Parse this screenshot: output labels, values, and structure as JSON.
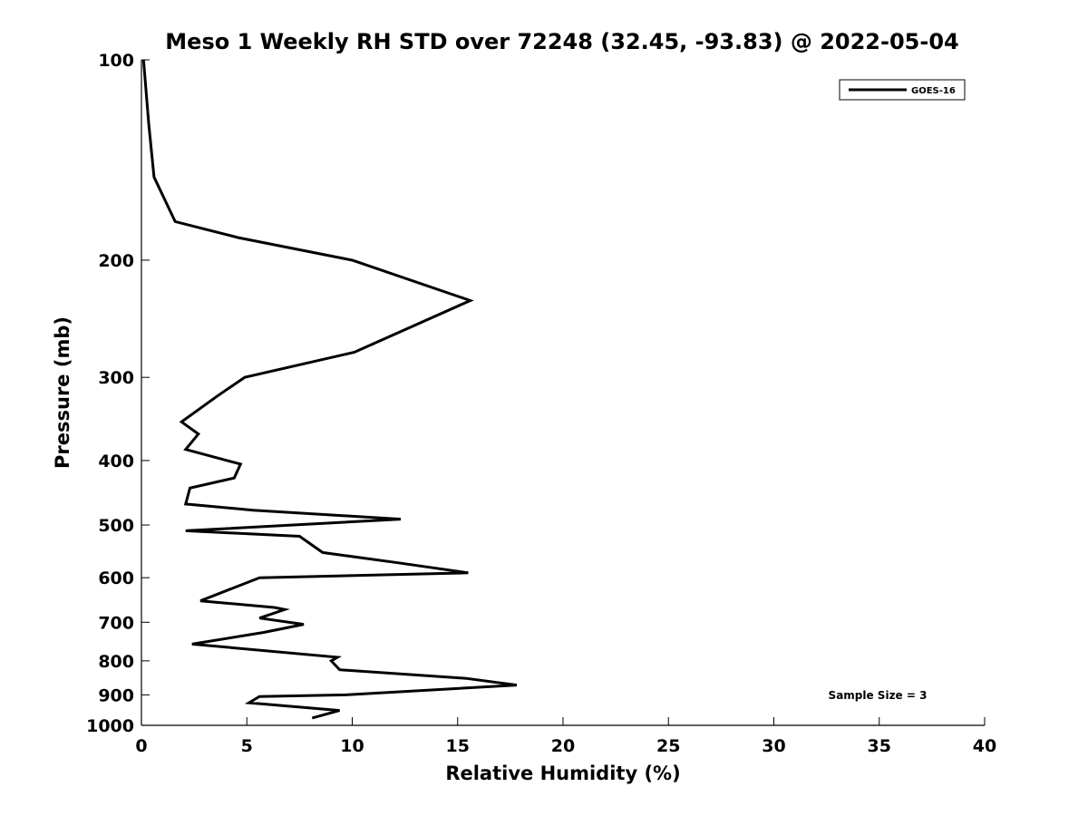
{
  "chart_data": {
    "type": "line",
    "title": "Meso 1 Weekly RH STD over 72248 (32.45, -93.83) @ 2022-05-04",
    "xlabel": "Relative Humidity (%)",
    "ylabel": "Pressure (mb)",
    "xlim": [
      0,
      40
    ],
    "ylim": [
      100,
      1000
    ],
    "y_scale": "log",
    "y_reversed": true,
    "x_ticks": [
      0,
      5,
      10,
      15,
      20,
      25,
      30,
      35,
      40
    ],
    "y_ticks": [
      100,
      200,
      300,
      400,
      500,
      600,
      700,
      800,
      900,
      1000
    ],
    "grid": false,
    "legend_position": "top-right",
    "annotation": "Sample Size = 3",
    "series": [
      {
        "name": "GOES-16",
        "color": "#000000",
        "x": [
          0.1,
          0.35,
          0.6,
          1.6,
          4.6,
          10.0,
          15.6,
          10.1,
          4.9,
          3.6,
          1.9,
          2.7,
          2.1,
          4.7,
          4.4,
          2.3,
          2.1,
          5.3,
          12.3,
          2.1,
          7.5,
          8.6,
          12.2,
          15.5,
          5.6,
          2.8,
          6.3,
          6.8,
          5.6,
          7.7,
          5.8,
          2.4,
          9.3,
          9.0,
          9.4,
          15.4,
          17.8,
          9.7,
          5.6,
          5.1,
          9.4,
          8.1
        ],
        "y": [
          100,
          125,
          150,
          175,
          185,
          200,
          230,
          275,
          300,
          320,
          350,
          365,
          385,
          405,
          425,
          440,
          465,
          475,
          490,
          510,
          520,
          550,
          570,
          590,
          600,
          650,
          665,
          670,
          690,
          705,
          725,
          755,
          790,
          800,
          825,
          850,
          870,
          900,
          905,
          925,
          950,
          975
        ]
      }
    ]
  }
}
